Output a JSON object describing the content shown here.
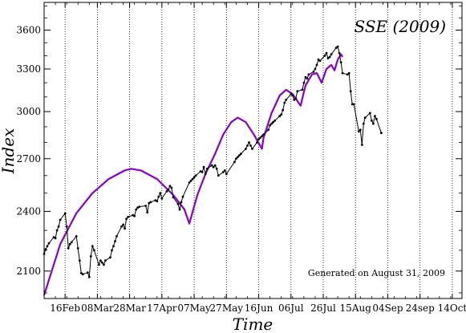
{
  "chart_data": {
    "type": "line",
    "title": "SSE (2009)",
    "xlabel": "Time",
    "ylabel": "Index",
    "annotation": "Generated on August 31, 2009",
    "x_ticks": [
      "16Feb",
      "08Mar",
      "28Mar",
      "17Apr",
      "07May",
      "27May",
      "16Jun",
      "06Jul",
      "26Jul",
      "15Aug",
      "04Sep",
      "24sep",
      "14Oct"
    ],
    "y_ticks": [
      2100,
      2400,
      2700,
      3000,
      3300,
      3600
    ],
    "xlim": [
      "2009-02-03",
      "2009-10-20"
    ],
    "ylim": [
      1975,
      3830
    ],
    "y_scale": "log",
    "grid": "vertical-dotted",
    "colors": {
      "index_line": "#000000",
      "fit_curve": "#8800cc"
    },
    "series": [
      {
        "kind": "index",
        "points": [
          [
            "2009-02-03",
            2182
          ],
          [
            "2009-02-04",
            2205
          ],
          [
            "2009-02-05",
            2220
          ],
          [
            "2009-02-06",
            2235
          ],
          [
            "2009-02-09",
            2265
          ],
          [
            "2009-02-10",
            2260
          ],
          [
            "2009-02-11",
            2300
          ],
          [
            "2009-02-12",
            2320
          ],
          [
            "2009-02-13",
            2355
          ],
          [
            "2009-02-16",
            2389
          ],
          [
            "2009-02-17",
            2320
          ],
          [
            "2009-02-18",
            2210
          ],
          [
            "2009-02-19",
            2230
          ],
          [
            "2009-02-20",
            2240
          ],
          [
            "2009-02-23",
            2270
          ],
          [
            "2009-02-24",
            2210
          ],
          [
            "2009-02-25",
            2150
          ],
          [
            "2009-02-26",
            2090
          ],
          [
            "2009-02-27",
            2085
          ],
          [
            "2009-03-02",
            2093
          ],
          [
            "2009-03-03",
            2072
          ],
          [
            "2009-03-04",
            2170
          ],
          [
            "2009-03-05",
            2220
          ],
          [
            "2009-03-06",
            2200
          ],
          [
            "2009-03-09",
            2130
          ],
          [
            "2009-03-10",
            2150
          ],
          [
            "2009-03-11",
            2140
          ],
          [
            "2009-03-12",
            2130
          ],
          [
            "2009-03-13",
            2150
          ],
          [
            "2009-03-16",
            2165
          ],
          [
            "2009-03-17",
            2200
          ],
          [
            "2009-03-18",
            2220
          ],
          [
            "2009-03-19",
            2245
          ],
          [
            "2009-03-20",
            2270
          ],
          [
            "2009-03-23",
            2320
          ],
          [
            "2009-03-24",
            2330
          ],
          [
            "2009-03-25",
            2310
          ],
          [
            "2009-03-26",
            2360
          ],
          [
            "2009-03-27",
            2370
          ],
          [
            "2009-03-30",
            2380
          ],
          [
            "2009-03-31",
            2375
          ],
          [
            "2009-04-01",
            2410
          ],
          [
            "2009-04-02",
            2420
          ],
          [
            "2009-04-03",
            2425
          ],
          [
            "2009-04-07",
            2430
          ],
          [
            "2009-04-08",
            2395
          ],
          [
            "2009-04-09",
            2445
          ],
          [
            "2009-04-10",
            2450
          ],
          [
            "2009-04-13",
            2460
          ],
          [
            "2009-04-14",
            2455
          ],
          [
            "2009-04-15",
            2480
          ],
          [
            "2009-04-16",
            2500
          ],
          [
            "2009-04-17",
            2470
          ],
          [
            "2009-04-20",
            2510
          ],
          [
            "2009-04-21",
            2520
          ],
          [
            "2009-04-22",
            2540
          ],
          [
            "2009-04-23",
            2530
          ],
          [
            "2009-04-24",
            2477
          ],
          [
            "2009-04-27",
            2440
          ],
          [
            "2009-04-28",
            2410
          ],
          [
            "2009-04-29",
            2450
          ],
          [
            "2009-04-30",
            2480
          ],
          [
            "2009-05-04",
            2560
          ],
          [
            "2009-05-05",
            2570
          ],
          [
            "2009-05-06",
            2580
          ],
          [
            "2009-05-07",
            2590
          ],
          [
            "2009-05-08",
            2600
          ],
          [
            "2009-05-11",
            2625
          ],
          [
            "2009-05-12",
            2620
          ],
          [
            "2009-05-13",
            2650
          ],
          [
            "2009-05-14",
            2610
          ],
          [
            "2009-05-15",
            2640
          ],
          [
            "2009-05-18",
            2660
          ],
          [
            "2009-05-19",
            2650
          ],
          [
            "2009-05-20",
            2660
          ],
          [
            "2009-05-21",
            2640
          ],
          [
            "2009-05-22",
            2600
          ],
          [
            "2009-05-25",
            2620
          ],
          [
            "2009-05-26",
            2630
          ],
          [
            "2009-05-27",
            2610
          ],
          [
            "2009-06-01",
            2680
          ],
          [
            "2009-06-02",
            2700
          ],
          [
            "2009-06-03",
            2710
          ],
          [
            "2009-06-04",
            2720
          ],
          [
            "2009-06-05",
            2730
          ],
          [
            "2009-06-08",
            2760
          ],
          [
            "2009-06-09",
            2780
          ],
          [
            "2009-06-10",
            2800
          ],
          [
            "2009-06-11",
            2780
          ],
          [
            "2009-06-12",
            2760
          ],
          [
            "2009-06-15",
            2800
          ],
          [
            "2009-06-16",
            2820
          ],
          [
            "2009-06-17",
            2830
          ],
          [
            "2009-06-18",
            2840
          ],
          [
            "2009-06-19",
            2850
          ],
          [
            "2009-06-22",
            2880
          ],
          [
            "2009-06-23",
            2910
          ],
          [
            "2009-06-24",
            2920
          ],
          [
            "2009-06-25",
            2930
          ],
          [
            "2009-06-26",
            2940
          ],
          [
            "2009-06-29",
            2970
          ],
          [
            "2009-06-30",
            2980
          ],
          [
            "2009-07-01",
            3010
          ],
          [
            "2009-07-02",
            3060
          ],
          [
            "2009-07-03",
            3080
          ],
          [
            "2009-07-06",
            3120
          ],
          [
            "2009-07-07",
            3110
          ],
          [
            "2009-07-08",
            3080
          ],
          [
            "2009-07-09",
            3090
          ],
          [
            "2009-07-10",
            3140
          ],
          [
            "2009-07-13",
            3150
          ],
          [
            "2009-07-14",
            3200
          ],
          [
            "2009-07-15",
            3240
          ],
          [
            "2009-07-16",
            3230
          ],
          [
            "2009-07-17",
            3260
          ],
          [
            "2009-07-20",
            3280
          ],
          [
            "2009-07-21",
            3300
          ],
          [
            "2009-07-22",
            3330
          ],
          [
            "2009-07-23",
            3370
          ],
          [
            "2009-07-24",
            3360
          ],
          [
            "2009-07-27",
            3400
          ],
          [
            "2009-07-28",
            3420
          ],
          [
            "2009-07-29",
            3380
          ],
          [
            "2009-07-30",
            3390
          ],
          [
            "2009-07-31",
            3410
          ],
          [
            "2009-08-03",
            3460
          ],
          [
            "2009-08-04",
            3470
          ],
          [
            "2009-08-05",
            3420
          ],
          [
            "2009-08-06",
            3350
          ],
          [
            "2009-08-07",
            3270
          ],
          [
            "2009-08-10",
            3260
          ],
          [
            "2009-08-11",
            3270
          ],
          [
            "2009-08-12",
            3140
          ],
          [
            "2009-08-13",
            3050
          ],
          [
            "2009-08-14",
            3050
          ],
          [
            "2009-08-17",
            2870
          ],
          [
            "2009-08-18",
            2880
          ],
          [
            "2009-08-19",
            2785
          ],
          [
            "2009-08-20",
            2920
          ],
          [
            "2009-08-21",
            2960
          ],
          [
            "2009-08-24",
            2990
          ],
          [
            "2009-08-25",
            2940
          ],
          [
            "2009-08-26",
            2920
          ],
          [
            "2009-08-27",
            2970
          ],
          [
            "2009-08-28",
            2950
          ],
          [
            "2009-08-31",
            2860
          ]
        ]
      },
      {
        "kind": "fit",
        "points": [
          [
            "2009-02-03",
            1990
          ],
          [
            "2009-02-13",
            2230
          ],
          [
            "2009-02-23",
            2390
          ],
          [
            "2009-03-05",
            2500
          ],
          [
            "2009-03-15",
            2580
          ],
          [
            "2009-03-25",
            2630
          ],
          [
            "2009-03-29",
            2640
          ],
          [
            "2009-04-04",
            2630
          ],
          [
            "2009-04-14",
            2580
          ],
          [
            "2009-04-24",
            2490
          ],
          [
            "2009-05-01",
            2410
          ],
          [
            "2009-05-04",
            2335
          ],
          [
            "2009-05-09",
            2490
          ],
          [
            "2009-05-14",
            2610
          ],
          [
            "2009-05-20",
            2730
          ],
          [
            "2009-05-25",
            2850
          ],
          [
            "2009-05-30",
            2930
          ],
          [
            "2009-06-03",
            2960
          ],
          [
            "2009-06-08",
            2930
          ],
          [
            "2009-06-13",
            2850
          ],
          [
            "2009-06-18",
            2760
          ],
          [
            "2009-06-19",
            2830
          ],
          [
            "2009-06-24",
            2990
          ],
          [
            "2009-06-29",
            3110
          ],
          [
            "2009-07-03",
            3150
          ],
          [
            "2009-07-07",
            3120
          ],
          [
            "2009-07-12",
            3040
          ],
          [
            "2009-07-15",
            3180
          ],
          [
            "2009-07-19",
            3260
          ],
          [
            "2009-07-22",
            3270
          ],
          [
            "2009-07-25",
            3200
          ],
          [
            "2009-07-28",
            3300
          ],
          [
            "2009-07-31",
            3330
          ],
          [
            "2009-08-02",
            3290
          ],
          [
            "2009-08-04",
            3370
          ],
          [
            "2009-08-06",
            3410
          ],
          [
            "2009-08-07",
            3390
          ]
        ]
      }
    ]
  }
}
